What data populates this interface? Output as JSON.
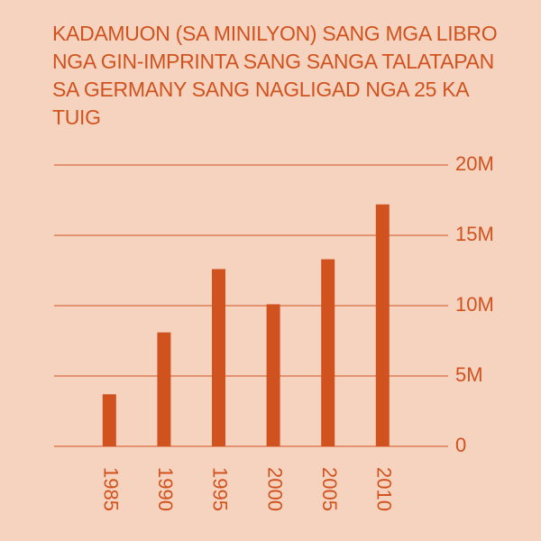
{
  "chart_data": {
    "type": "bar",
    "title": "KADAMUON (SA MINILYON) SANG MGA LIBRO NGA GIN-IMPRINTA SANG SANGA TALATAPAN SA GERMANY SANG NAGLIGAD NGA 25 KA TUIG",
    "categories": [
      "1985",
      "1990",
      "1995",
      "2000",
      "2005",
      "2010"
    ],
    "values": [
      3700000,
      8100000,
      12600000,
      10100000,
      13300000,
      17200000
    ],
    "color": "#d0531f",
    "ylim": [
      0,
      20000000
    ],
    "yticks": [
      0,
      {
        "value": 5000000,
        "label": "5M"
      },
      {
        "value": 10000000,
        "label": "10M"
      },
      {
        "value": 15000000,
        "label": "15M"
      },
      {
        "value": 20000000,
        "label": "20M"
      }
    ],
    "grid": true
  }
}
